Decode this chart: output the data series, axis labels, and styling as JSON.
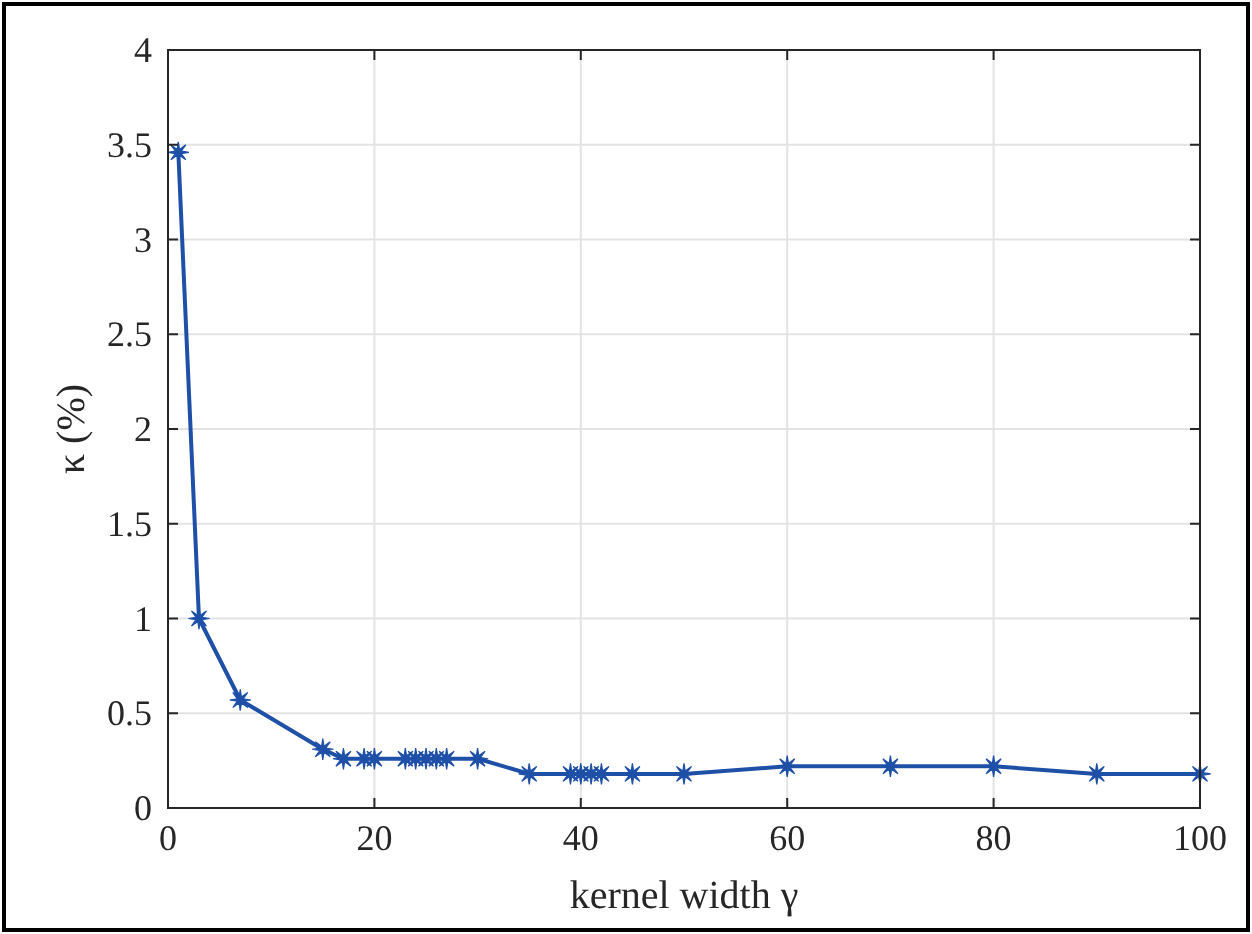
{
  "chart_data": {
    "type": "line",
    "xlabel": "kernel width γ",
    "ylabel": "κ (%)",
    "xlim": [
      0,
      100
    ],
    "xticks": [
      0,
      20,
      40,
      60,
      80,
      100
    ],
    "ylim": [
      0,
      4
    ],
    "yticks": [
      0,
      0.5,
      1,
      1.5,
      2,
      2.5,
      3,
      3.5,
      4
    ],
    "grid": true,
    "marker": "star",
    "line_style": "solid",
    "series": [
      {
        "color": "#1f50a8",
        "x": [
          1,
          3,
          7,
          15,
          17,
          19,
          20,
          23,
          24,
          25,
          26,
          27,
          30,
          35,
          39,
          40,
          41,
          42,
          45,
          50,
          60,
          70,
          80,
          90,
          100
        ],
        "values": [
          3.46,
          1.0,
          0.57,
          0.31,
          0.26,
          0.26,
          0.26,
          0.26,
          0.26,
          0.26,
          0.26,
          0.26,
          0.26,
          0.18,
          0.18,
          0.18,
          0.18,
          0.18,
          0.18,
          0.18,
          0.22,
          0.22,
          0.22,
          0.18,
          0.18
        ]
      }
    ]
  }
}
